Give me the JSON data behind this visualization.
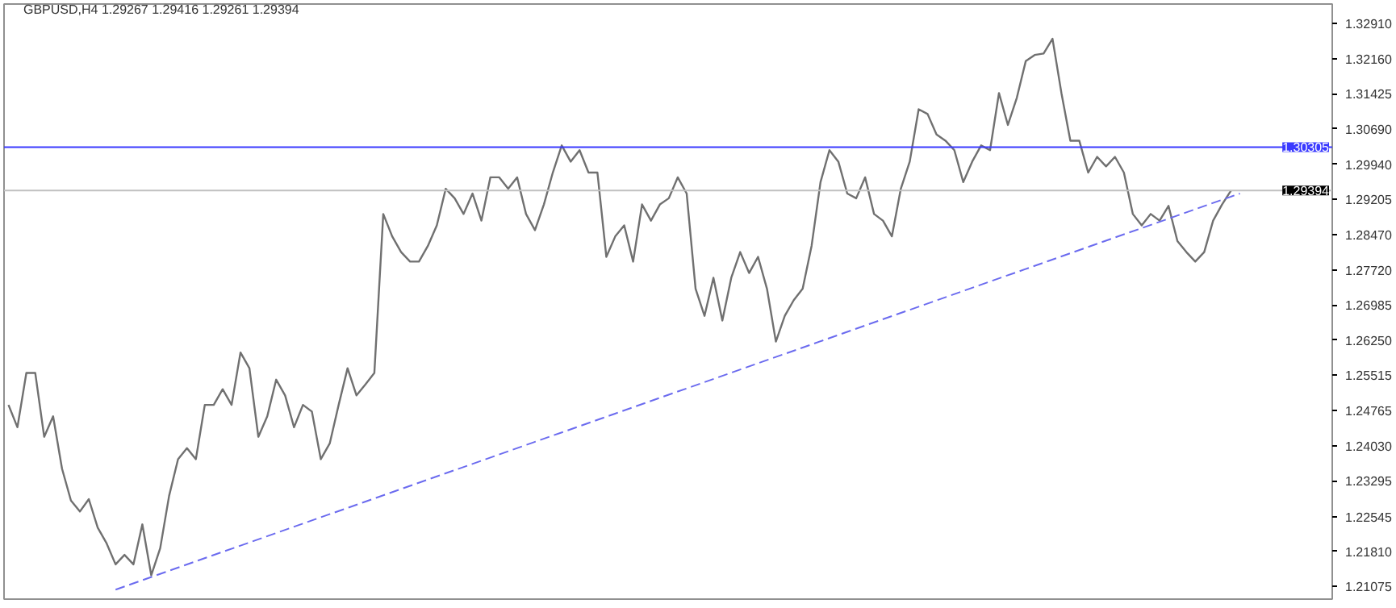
{
  "chart_data": {
    "type": "line",
    "title": "GBPUSD,H4  1.29267 1.29416 1.29261 1.29394",
    "categories": [
      null,
      null,
      null,
      null,
      null,
      null,
      null,
      null,
      null,
      null,
      null,
      null,
      null,
      null,
      null,
      null,
      null,
      null,
      null,
      null,
      null,
      null,
      null,
      null,
      null,
      null,
      null,
      null,
      null,
      null,
      null,
      null,
      null,
      null,
      null,
      null,
      null,
      null,
      null,
      null,
      null,
      null,
      null,
      null,
      null,
      null,
      null,
      null,
      null,
      null,
      null,
      null,
      null,
      null,
      null,
      null,
      null,
      null,
      null,
      null,
      null,
      null,
      null,
      null,
      null,
      null,
      null,
      null,
      null,
      null,
      null,
      null,
      null,
      null,
      null,
      null,
      null,
      null,
      null,
      null,
      null,
      null,
      null,
      null,
      null,
      null,
      null,
      null,
      null,
      null,
      null,
      null,
      null,
      null,
      null,
      null,
      null,
      null,
      null,
      null,
      null,
      null,
      null,
      null,
      null,
      null,
      null,
      null,
      null,
      null,
      null,
      null,
      null,
      null,
      null,
      null,
      null,
      null,
      null,
      null,
      null,
      null,
      null,
      null,
      null,
      null,
      null,
      null,
      null,
      null,
      null,
      null,
      null,
      null,
      null,
      null,
      null,
      null,
      null
    ],
    "ylim": [
      1.2081,
      1.3331
    ],
    "yticks": [
      {
        "value": 1.3291,
        "label": "1.32910"
      },
      {
        "value": 1.3216,
        "label": "1.32160"
      },
      1.31425,
      {
        "value": 1.3069,
        "label": "1.30690"
      },
      {
        "value": 1.2994,
        "label": "1.29940"
      },
      1.29205,
      {
        "value": 1.2847,
        "label": "1.28470"
      },
      {
        "value": 1.2772,
        "label": "1.27720"
      },
      1.26985,
      {
        "value": 1.2625,
        "label": "1.26250"
      },
      1.25515,
      1.24765,
      {
        "value": 1.2403,
        "label": "1.24030"
      },
      1.23295,
      1.22545,
      {
        "value": 1.2181,
        "label": "1.21810"
      },
      1.21075
    ],
    "tick_labels": "y",
    "grid": false,
    "series": [
      {
        "color": "#707070",
        "line_style": "solid",
        "values": [
          1.2489,
          1.2442,
          1.2556,
          1.2556,
          1.2422,
          1.2465,
          1.2355,
          1.2288,
          1.2265,
          1.2291,
          1.2231,
          1.2198,
          1.2154,
          1.2174,
          1.2154,
          1.2238,
          1.2131,
          1.2188,
          1.2298,
          1.2375,
          1.2398,
          1.2375,
          1.2489,
          1.2489,
          1.2522,
          1.2489,
          1.2599,
          1.2566,
          1.2422,
          1.2465,
          1.2542,
          1.2509,
          1.2442,
          1.2489,
          1.2475,
          1.2375,
          1.2408,
          1.2489,
          1.2566,
          1.2509,
          1.2532,
          1.2556,
          1.289,
          1.2843,
          1.281,
          1.279,
          1.279,
          1.2823,
          1.2866,
          1.2943,
          1.2923,
          1.289,
          1.2933,
          1.2876,
          1.2967,
          1.2967,
          1.2943,
          1.2967,
          1.289,
          1.2856,
          1.291,
          1.2977,
          1.3034,
          1.3,
          1.3024,
          1.2977,
          1.2977,
          1.28,
          1.2843,
          1.2866,
          1.279,
          1.291,
          1.2876,
          1.291,
          1.2923,
          1.2967,
          1.2933,
          1.2733,
          1.2676,
          1.2756,
          1.2666,
          1.2756,
          1.281,
          1.2766,
          1.28,
          1.2733,
          1.2622,
          1.2676,
          1.2709,
          1.2733,
          1.2823,
          1.2957,
          1.3024,
          1.3,
          1.2933,
          1.2923,
          1.2967,
          1.289,
          1.2876,
          1.2843,
          1.2943,
          1.3,
          1.311,
          1.31,
          1.3057,
          1.3044,
          1.3024,
          1.2957,
          1.3,
          1.3034,
          1.3024,
          1.3144,
          1.3077,
          1.3134,
          1.3211,
          1.3224,
          1.3227,
          1.3258,
          1.3144,
          1.3044,
          1.3044,
          1.2977,
          1.301,
          1.299,
          1.301,
          1.2977,
          1.289,
          1.2866,
          1.289,
          1.2876,
          1.2907,
          1.2833,
          1.281,
          1.279,
          1.281,
          1.2876,
          1.291,
          1.2939,
          null
        ]
      },
      {
        "color": "#6b6bef",
        "line_style": "dashed",
        "values": [
          null,
          null,
          null,
          null,
          null,
          null,
          null,
          null,
          null,
          null,
          null,
          null,
          1.2101,
          null,
          null,
          null,
          null,
          null,
          null,
          null,
          null,
          null,
          null,
          null,
          null,
          null,
          null,
          null,
          null,
          null,
          null,
          null,
          null,
          null,
          null,
          null,
          null,
          null,
          null,
          null,
          null,
          null,
          null,
          null,
          null,
          null,
          null,
          null,
          null,
          null,
          null,
          null,
          null,
          null,
          null,
          null,
          null,
          null,
          null,
          null,
          null,
          null,
          null,
          null,
          null,
          null,
          null,
          null,
          null,
          null,
          null,
          null,
          null,
          null,
          null,
          null,
          null,
          null,
          null,
          null,
          null,
          null,
          null,
          null,
          null,
          null,
          null,
          null,
          null,
          null,
          null,
          null,
          null,
          null,
          null,
          null,
          null,
          null,
          null,
          null,
          null,
          null,
          null,
          null,
          null,
          null,
          null,
          null,
          null,
          null,
          null,
          null,
          null,
          null,
          null,
          null,
          null,
          null,
          null,
          null,
          null,
          null,
          null,
          null,
          null,
          null,
          null,
          null,
          null,
          null,
          null,
          null,
          null,
          null,
          null,
          null,
          null,
          null,
          1.2933
        ]
      }
    ],
    "ref_lines": [
      {
        "axis": "y",
        "value": 1.30305,
        "label": "1.30305",
        "color": "#3a3aff",
        "line_style": "solid"
      },
      {
        "axis": "y",
        "value": 1.29394,
        "label": "1.29394",
        "color": "#c0c0c0",
        "line_style": "solid"
      }
    ]
  }
}
